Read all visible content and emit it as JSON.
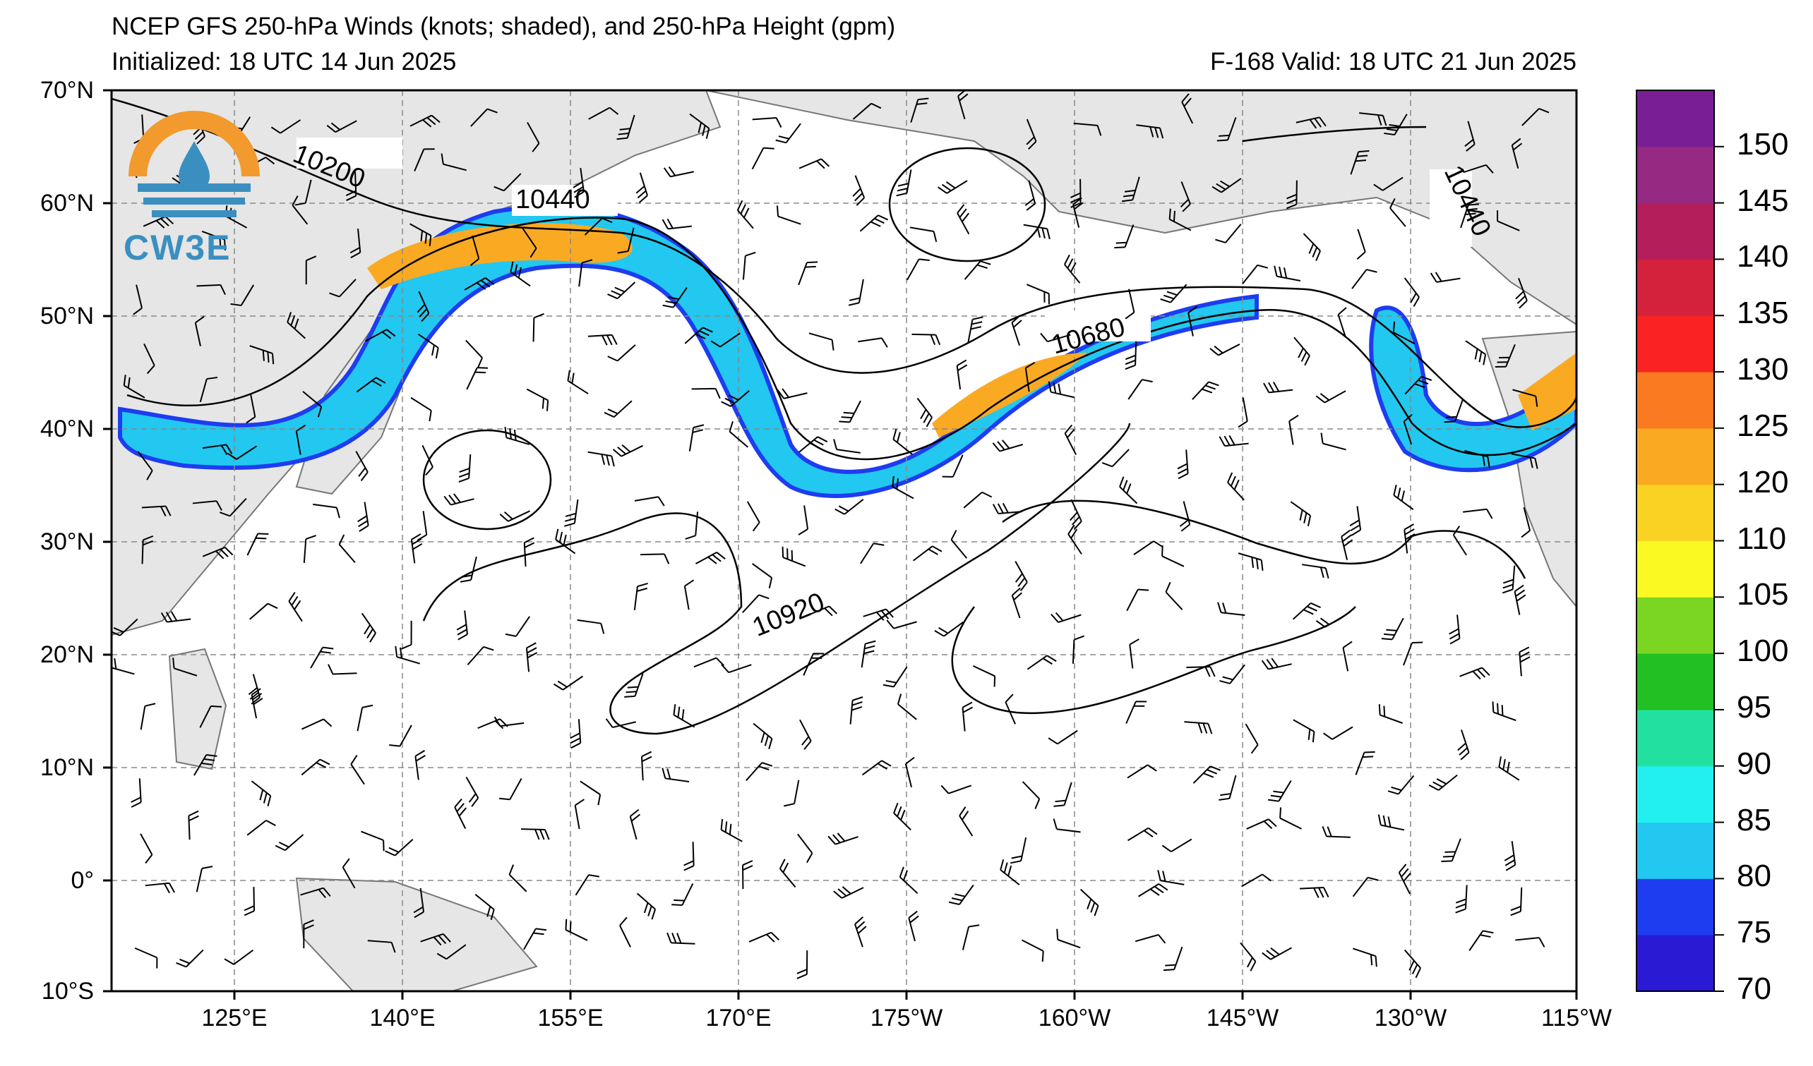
{
  "header": {
    "title": "NCEP GFS 250-hPa Winds (knots; shaded), and 250-hPa Height (gpm)",
    "initialized": "Initialized: 18 UTC 14 Jun 2025",
    "valid": "F-168  Valid: 18 UTC 21 Jun 2025"
  },
  "logo": {
    "text": "CW3E",
    "icon": "cw3e-logo-icon"
  },
  "axes": {
    "lat_labels": [
      "70°N",
      "60°N",
      "50°N",
      "40°N",
      "30°N",
      "20°N",
      "10°N",
      "0°",
      "10°S"
    ],
    "lon_labels": [
      "125°E",
      "140°E",
      "155°E",
      "170°E",
      "175°W",
      "160°W",
      "145°W",
      "130°W",
      "115°W"
    ]
  },
  "contours": {
    "labels": [
      "10200",
      "10440",
      "10680",
      "10920",
      "10440"
    ]
  },
  "colorbar": {
    "labels": [
      "150",
      "145",
      "140",
      "135",
      "130",
      "125",
      "120",
      "110",
      "105",
      "100",
      "95",
      "90",
      "85",
      "80",
      "75",
      "70"
    ],
    "colors": [
      "#2a1ad4",
      "#1e3cf0",
      "#22c8f0",
      "#22f0f0",
      "#22e0a0",
      "#22c022",
      "#7ad622",
      "#fafa22",
      "#fad222",
      "#faaa22",
      "#fa7a22",
      "#fa2222",
      "#d4223c",
      "#b41e5a",
      "#962a82",
      "#7a1e96"
    ]
  }
}
